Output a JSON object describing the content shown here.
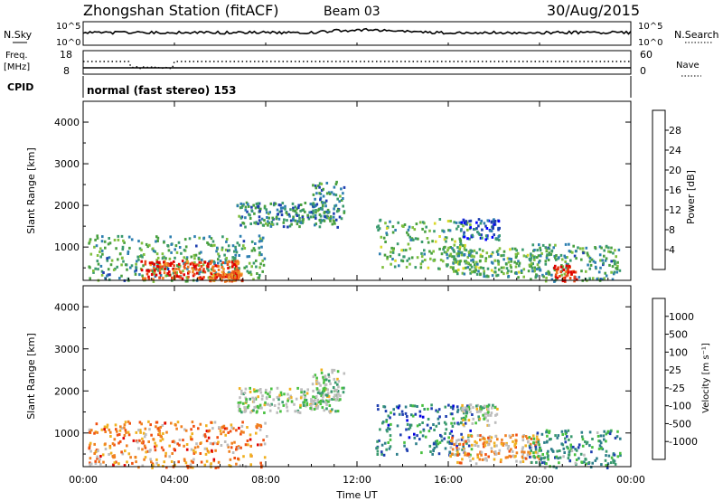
{
  "header": {
    "station": "Zhongshan Station (fitACF)",
    "beam": "Beam 03",
    "date": "30/Aug/2015"
  },
  "panels": {
    "nsky": {
      "label": "N.Sky",
      "right_label": "N.Search",
      "ticks_left": [
        "10^5",
        "10^0"
      ],
      "ticks_right": [
        "10^5",
        "10^0"
      ]
    },
    "freq": {
      "label": "Freq.",
      "unit": "[MHz]",
      "ticks_left": [
        "18",
        "8"
      ],
      "right_label": "Nave",
      "ticks_right": [
        "60",
        "0"
      ]
    },
    "cpid": {
      "label": "CPID",
      "text": "normal (fast stereo) 153"
    }
  },
  "chart_data": [
    {
      "type": "heatmap",
      "name": "power",
      "ylabel": "Slant Range [km]",
      "ylim": [
        200,
        4500
      ],
      "yticks": [
        1000,
        2000,
        3000,
        4000
      ],
      "colorbar": {
        "label": "Power [dB]",
        "ticks": [
          "4",
          "8",
          "12",
          "16",
          "20",
          "24",
          "28"
        ],
        "colors": [
          "#0000ff",
          "#1f3fb0",
          "#2e7fb0",
          "#3a9a6e",
          "#48a040",
          "#7fbf3f",
          "#d9d92a",
          "#f0a028",
          "#f07820",
          "#e84a1a",
          "#e00000"
        ]
      },
      "regions": [
        {
          "t": [
            0.2,
            8.0
          ],
          "r": [
            200,
            1300
          ],
          "level": 0.35
        },
        {
          "t": [
            2.5,
            6.8
          ],
          "r": [
            250,
            700
          ],
          "level": 0.85
        },
        {
          "t": [
            5.5,
            7.0
          ],
          "r": [
            200,
            450
          ],
          "level": 0.8
        },
        {
          "t": [
            6.7,
            11.2
          ],
          "r": [
            1500,
            2100
          ],
          "level": 0.3
        },
        {
          "t": [
            10.0,
            11.4
          ],
          "r": [
            1700,
            2600
          ],
          "level": 0.3
        },
        {
          "t": [
            12.8,
            17.0
          ],
          "r": [
            500,
            1700
          ],
          "level": 0.4
        },
        {
          "t": [
            16.5,
            18.2
          ],
          "r": [
            1200,
            1700
          ],
          "level": 0.2
        },
        {
          "t": [
            16.0,
            20.0
          ],
          "r": [
            300,
            1000
          ],
          "level": 0.4
        },
        {
          "t": [
            19.5,
            23.5
          ],
          "r": [
            200,
            1100
          ],
          "level": 0.35
        },
        {
          "t": [
            20.6,
            21.6
          ],
          "r": [
            200,
            600
          ],
          "level": 0.95
        }
      ]
    },
    {
      "type": "heatmap",
      "name": "velocity",
      "xlabel": "Time UT",
      "ylabel": "Slant Range [km]",
      "ylim": [
        200,
        4500
      ],
      "yticks": [
        1000,
        2000,
        3000,
        4000
      ],
      "xticks": [
        "00:00",
        "04:00",
        "08:00",
        "12:00",
        "16:00",
        "20:00",
        "00:00"
      ],
      "xlim": [
        0,
        24
      ],
      "colorbar": {
        "label": "Velocity [m s⁻¹]",
        "ticks": [
          "1000",
          "500",
          "100",
          "25",
          "-25",
          "-100",
          "-500",
          "-1000"
        ],
        "colors": [
          "#0000e0",
          "#1f3fb0",
          "#2e7f8a",
          "#3a9a6e",
          "#48c040",
          "#bdbdbd",
          "#bdbdbd",
          "#f0b020",
          "#f08020",
          "#f05010",
          "#e00000"
        ]
      },
      "regions": [
        {
          "t": [
            0.2,
            8.0
          ],
          "r": [
            200,
            1300
          ],
          "level": 0.75
        },
        {
          "t": [
            6.7,
            11.2
          ],
          "r": [
            1500,
            2100
          ],
          "level": 0.5
        },
        {
          "t": [
            10.0,
            11.4
          ],
          "r": [
            1700,
            2600
          ],
          "level": 0.5
        },
        {
          "t": [
            12.8,
            17.0
          ],
          "r": [
            500,
            1700
          ],
          "level": 0.25
        },
        {
          "t": [
            16.5,
            18.2
          ],
          "r": [
            1200,
            1700
          ],
          "level": 0.5
        },
        {
          "t": [
            16.0,
            20.0
          ],
          "r": [
            300,
            1000
          ],
          "level": 0.7
        },
        {
          "t": [
            19.5,
            23.5
          ],
          "r": [
            200,
            1100
          ],
          "level": 0.3
        }
      ]
    }
  ]
}
